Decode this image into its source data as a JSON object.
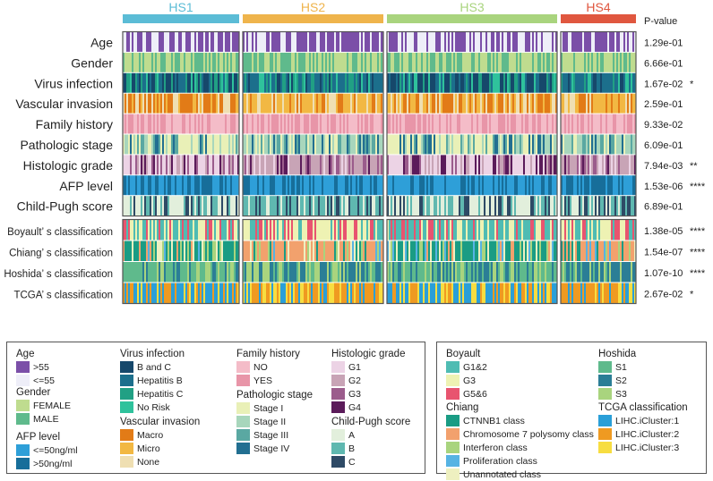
{
  "chart_data": {
    "type": "heatmap",
    "subtype": "clinical-annotation",
    "groups": [
      {
        "name": "HS1",
        "color": "#5bbcd6"
      },
      {
        "name": "HS2",
        "color": "#efb44c"
      },
      {
        "name": "HS3",
        "color": "#a9d47e"
      },
      {
        "name": "HS4",
        "color": "#e0573f"
      }
    ],
    "pvalue_header": "P-value",
    "blocks": [
      {
        "rows": [
          {
            "label": "Age",
            "pvalue": "1.29e-01",
            "sig": "",
            "colors": [
              "#7b4fa8",
              "#eeeef8"
            ]
          },
          {
            "label": "Gender",
            "pvalue": "6.66e-01",
            "sig": "",
            "colors": [
              "#bfdc8f",
              "#5fba8c"
            ]
          },
          {
            "label": "Virus infection",
            "pvalue": "1.67e-02",
            "sig": "*",
            "colors": [
              "#16486b",
              "#1c6f8c",
              "#21a084",
              "#2fc29c"
            ]
          },
          {
            "label": "Vascular invasion",
            "pvalue": "2.59e-01",
            "sig": "",
            "colors": [
              "#e27b17",
              "#f2b843",
              "#efdfb2"
            ]
          },
          {
            "label": "Family history",
            "pvalue": "9.33e-02",
            "sig": "",
            "colors": [
              "#f4bcc8",
              "#e895a8"
            ]
          },
          {
            "label": "Pathologic stage",
            "pvalue": "6.09e-01",
            "sig": "",
            "colors": [
              "#e9f0b7",
              "#a8d6bc",
              "#5aa8a2",
              "#226f91"
            ]
          },
          {
            "label": "Histologic grade",
            "pvalue": "7.94e-03",
            "sig": "**",
            "colors": [
              "#ecd3e5",
              "#c8a4b6",
              "#9b5c8c",
              "#5b1b5a"
            ]
          },
          {
            "label": "AFP level",
            "pvalue": "1.53e-06",
            "sig": "****",
            "colors": [
              "#2e9fd8",
              "#176e9a"
            ]
          },
          {
            "label": "Child-Pugh score",
            "pvalue": "6.89e-01",
            "sig": "",
            "colors": [
              "#e2efdc",
              "#5fb8b0",
              "#2e4a66"
            ]
          }
        ]
      },
      {
        "rows": [
          {
            "label": "Boyault’ s classification",
            "pvalue": "1.38e-05",
            "sig": "****",
            "colors": [
              "#4fbcb3",
              "#eef2b3",
              "#e8546f"
            ]
          },
          {
            "label": "Chiang’ s classification",
            "pvalue": "1.54e-07",
            "sig": "****",
            "colors": [
              "#1a9c84",
              "#f2a16d",
              "#a9d47e",
              "#56b3e3",
              "#eef0c0"
            ]
          },
          {
            "label": "Hoshida’ s classification",
            "pvalue": "1.07e-10",
            "sig": "****",
            "colors": [
              "#5fba8c",
              "#2b7e96",
              "#a9d47e"
            ]
          },
          {
            "label": "TCGA’ s classification",
            "pvalue": "2.67e-02",
            "sig": "*",
            "colors": [
              "#2a9fd8",
              "#ef9a21",
              "#f7dd41"
            ]
          }
        ]
      }
    ]
  },
  "legend": {
    "left": [
      {
        "title": "Age",
        "items": [
          {
            "label": ">55",
            "color": "#7b4fa8"
          },
          {
            "label": "<=55",
            "color": "#eeeef8"
          }
        ]
      },
      {
        "title": "Gender",
        "items": [
          {
            "label": "FEMALE",
            "color": "#bfdc8f"
          },
          {
            "label": "MALE",
            "color": "#5fba8c"
          }
        ]
      },
      {
        "title": "AFP level",
        "items": [
          {
            "label": "<=50ng/ml",
            "color": "#2e9fd8"
          },
          {
            "label": ">50ng/ml",
            "color": "#176e9a"
          }
        ]
      },
      {
        "title": "Virus infection",
        "items": [
          {
            "label": "B and C",
            "color": "#16486b"
          },
          {
            "label": "Hepatitis B",
            "color": "#1c6f8c"
          },
          {
            "label": "Hepatitis C",
            "color": "#21a084"
          },
          {
            "label": "No Risk",
            "color": "#2fc29c"
          }
        ]
      },
      {
        "title": "Vascular invasion",
        "items": [
          {
            "label": "Macro",
            "color": "#e27b17"
          },
          {
            "label": "Micro",
            "color": "#f2b843"
          },
          {
            "label": "None",
            "color": "#efdfb2"
          }
        ]
      },
      {
        "title": "Family history",
        "items": [
          {
            "label": "NO",
            "color": "#f4bcc8"
          },
          {
            "label": "YES",
            "color": "#e895a8"
          }
        ]
      },
      {
        "title": "Pathologic stage",
        "items": [
          {
            "label": "Stage I",
            "color": "#e9f0b7"
          },
          {
            "label": "Stage II",
            "color": "#a8d6bc"
          },
          {
            "label": "Stage III",
            "color": "#5aa8a2"
          },
          {
            "label": "Stage IV",
            "color": "#226f91"
          }
        ]
      },
      {
        "title": "Histologic grade",
        "items": [
          {
            "label": "G1",
            "color": "#ecd3e5"
          },
          {
            "label": "G2",
            "color": "#c8a4b6"
          },
          {
            "label": "G3",
            "color": "#9b5c8c"
          },
          {
            "label": "G4",
            "color": "#5b1b5a"
          }
        ]
      },
      {
        "title": "Child-Pugh score",
        "items": [
          {
            "label": "A",
            "color": "#e2efdc"
          },
          {
            "label": "B",
            "color": "#5fb8b0"
          },
          {
            "label": "C",
            "color": "#2e4a66"
          }
        ]
      }
    ],
    "right": [
      {
        "title": "Boyault",
        "items": [
          {
            "label": "G1&2",
            "color": "#4fbcb3"
          },
          {
            "label": "G3",
            "color": "#eef2b3"
          },
          {
            "label": "G5&6",
            "color": "#e8546f"
          }
        ]
      },
      {
        "title": "Chiang",
        "items": [
          {
            "label": "CTNNB1 class",
            "color": "#1a9c84"
          },
          {
            "label": "Chromosome 7 polysomy class",
            "color": "#f2a16d"
          },
          {
            "label": "Interferon class",
            "color": "#a9d47e"
          },
          {
            "label": "Proliferation class",
            "color": "#56b3e3"
          },
          {
            "label": "Unannotated class",
            "color": "#eef0c0"
          }
        ]
      },
      {
        "title": "Hoshida",
        "items": [
          {
            "label": "S1",
            "color": "#5fba8c"
          },
          {
            "label": "S2",
            "color": "#2b7e96"
          },
          {
            "label": "S3",
            "color": "#a9d47e"
          }
        ]
      },
      {
        "title": "TCGA classification",
        "items": [
          {
            "label": "LIHC.iCluster:1",
            "color": "#2a9fd8"
          },
          {
            "label": "LIHC.iCluster:2",
            "color": "#ef9a21"
          },
          {
            "label": "LIHC.iCluster:3",
            "color": "#f7dd41"
          }
        ]
      }
    ]
  }
}
